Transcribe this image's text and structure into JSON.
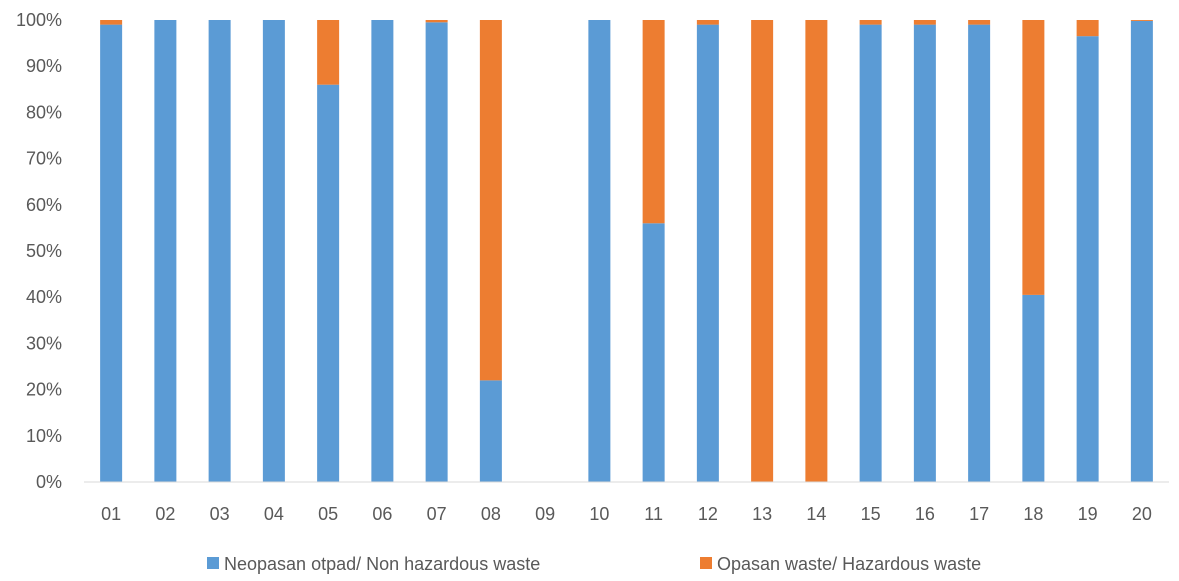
{
  "chart_data": {
    "type": "bar",
    "stacked": true,
    "percent": true,
    "categories": [
      "01",
      "02",
      "03",
      "04",
      "05",
      "06",
      "07",
      "08",
      "09",
      "10",
      "11",
      "12",
      "13",
      "14",
      "15",
      "16",
      "17",
      "18",
      "19",
      "20"
    ],
    "series": [
      {
        "name": "Neopasan otpad/ Non hazardous waste",
        "color": "#5B9BD5",
        "values": [
          99,
          100,
          100,
          100,
          86,
          100,
          99.5,
          22,
          0,
          100,
          56,
          99,
          0,
          0,
          99,
          99,
          99,
          40.5,
          96.5,
          99.8
        ]
      },
      {
        "name": "Opasan waste/ Hazardous waste",
        "color": "#ED7D31",
        "values": [
          1,
          0,
          0,
          0,
          14,
          0,
          0.5,
          78,
          0,
          0,
          44,
          1,
          100,
          100,
          1,
          1,
          1,
          59.5,
          3.5,
          0.2
        ]
      }
    ],
    "ylim": [
      0,
      100
    ],
    "yticks": [
      "0%",
      "10%",
      "20%",
      "30%",
      "40%",
      "50%",
      "60%",
      "70%",
      "80%",
      "90%",
      "100%"
    ],
    "grid": false,
    "legend": "bottom"
  }
}
